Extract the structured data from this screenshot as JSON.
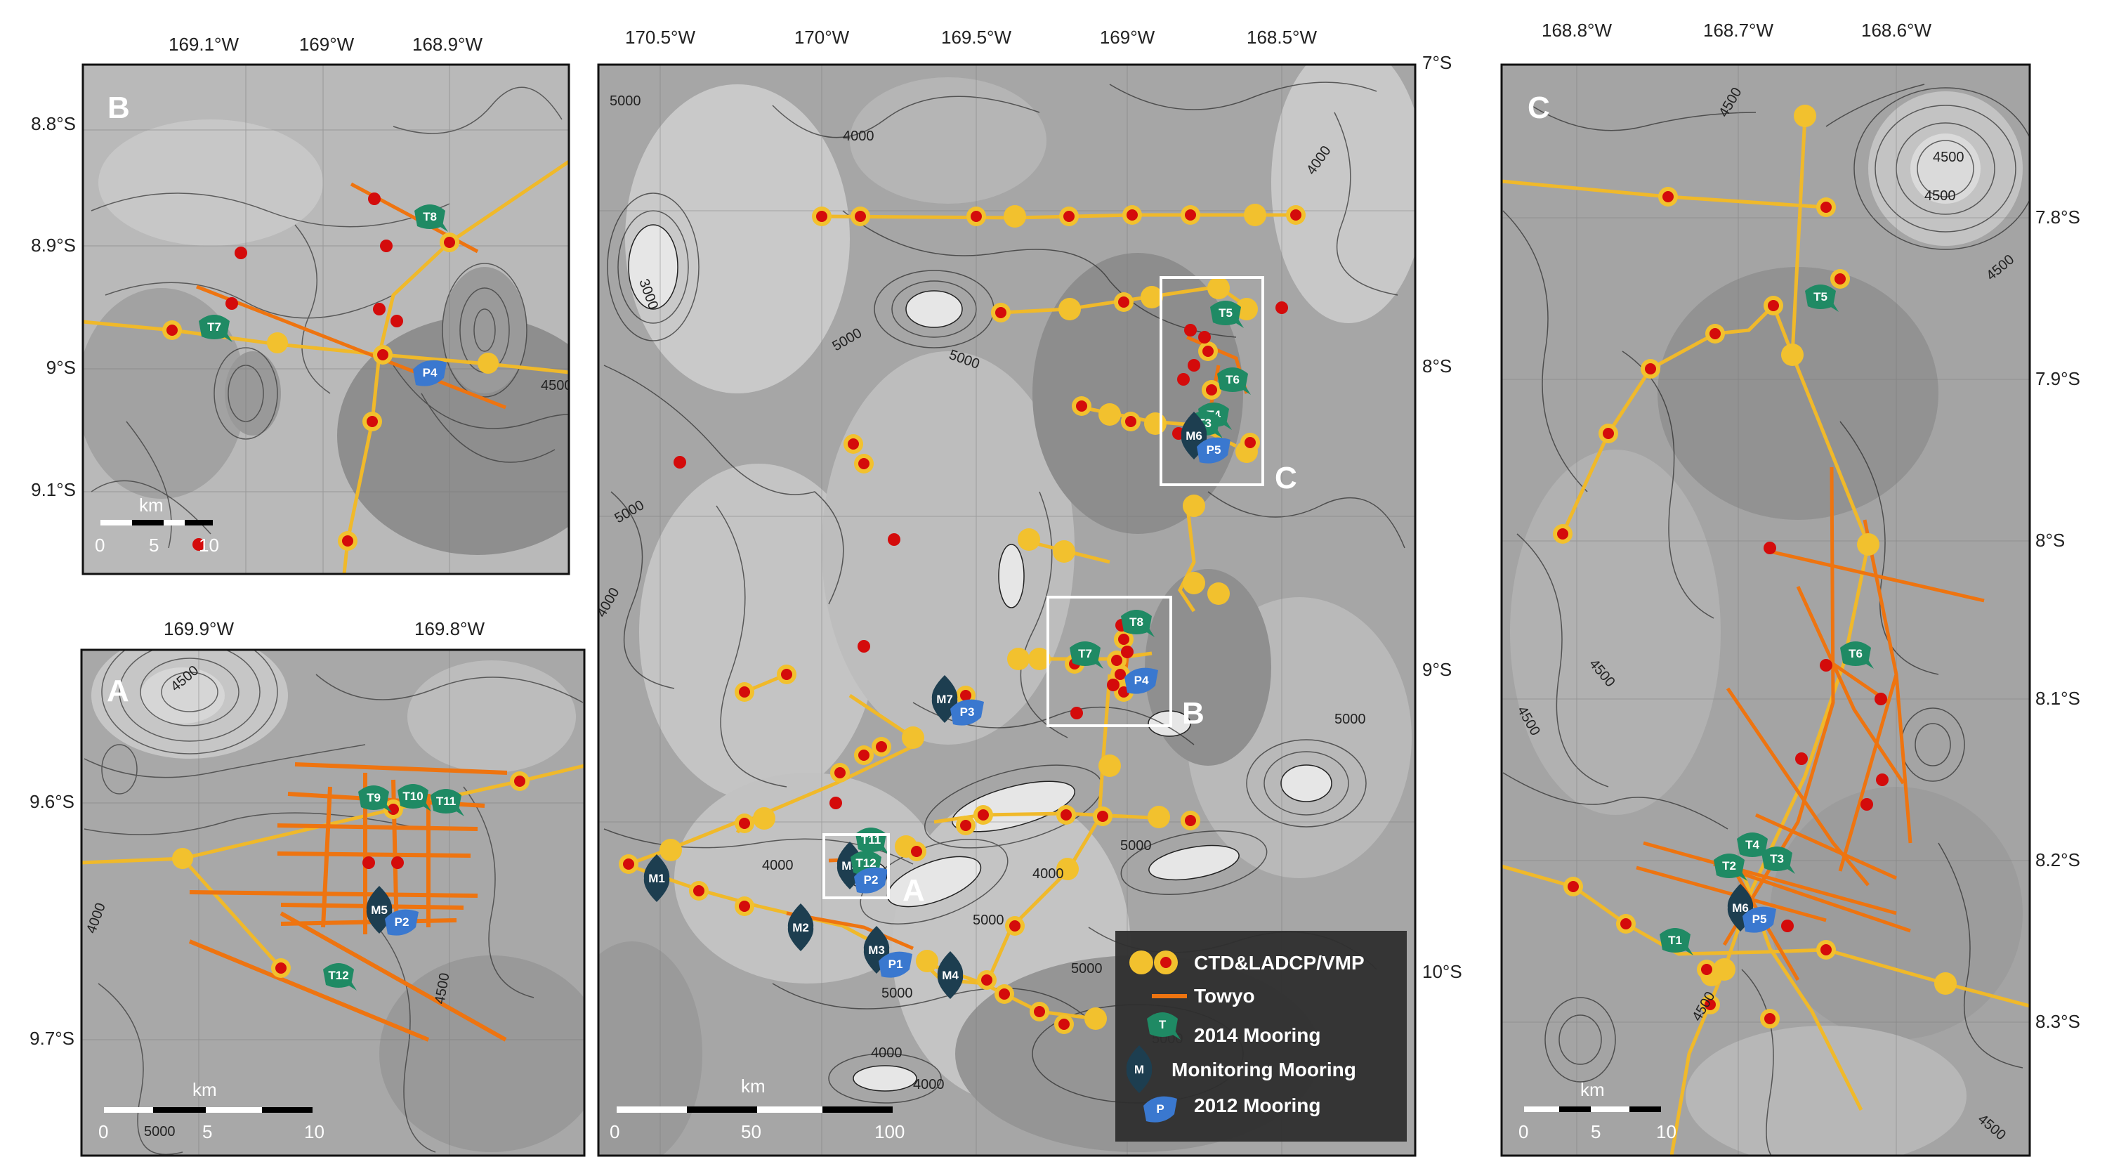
{
  "panels": {
    "B": {
      "letter": "B",
      "lon_ticks": [
        "169.1°W",
        "169°W",
        "168.9°W"
      ],
      "lat_ticks": [
        "8.8°S",
        "8.9°S",
        "9°S",
        "9.1°S"
      ],
      "scalebar": {
        "unit": "km",
        "ticks": [
          "0",
          "5",
          "10"
        ]
      },
      "contour_labels": [
        "4500"
      ],
      "moorings": [
        {
          "label": "T8",
          "type": "2014"
        },
        {
          "label": "T7",
          "type": "2014"
        },
        {
          "label": "P4",
          "type": "2012"
        }
      ]
    },
    "A": {
      "letter": "A",
      "lon_ticks": [
        "169.9°W",
        "169.8°W"
      ],
      "lat_ticks": [
        "9.6°S",
        "9.7°S"
      ],
      "scalebar": {
        "unit": "km",
        "ticks": [
          "0",
          "5",
          "10"
        ]
      },
      "contour_labels": [
        "4500",
        "4000",
        "5000",
        "4500"
      ],
      "moorings": [
        {
          "label": "T9",
          "type": "2014"
        },
        {
          "label": "T10",
          "type": "2014"
        },
        {
          "label": "T11",
          "type": "2014"
        },
        {
          "label": "M5",
          "type": "monitoring"
        },
        {
          "label": "P2",
          "type": "2012"
        },
        {
          "label": "T12",
          "type": "2014"
        }
      ]
    },
    "main": {
      "lon_ticks": [
        "170.5°W",
        "170°W",
        "169.5°W",
        "169°W",
        "168.5°W"
      ],
      "lat_ticks": [
        "7°S",
        "8°S",
        "9°S",
        "10°S"
      ],
      "scalebar": {
        "unit": "km",
        "ticks": [
          "0",
          "50",
          "100"
        ]
      },
      "box_labels": [
        "A",
        "B",
        "C"
      ],
      "contour_labels": [
        "5000",
        "4000",
        "3000",
        "5000",
        "4000",
        "5000",
        "5000",
        "4000",
        "5000",
        "4000",
        "5000",
        "4000",
        "4000",
        "5000",
        "5000",
        "5000",
        "5000",
        "4000"
      ],
      "moorings": [
        {
          "label": "T5",
          "type": "2014"
        },
        {
          "label": "T6",
          "type": "2014"
        },
        {
          "label": "T4",
          "type": "2014"
        },
        {
          "label": "T3",
          "type": "2014"
        },
        {
          "label": "M6",
          "type": "monitoring"
        },
        {
          "label": "P5",
          "type": "2012"
        },
        {
          "label": "T8",
          "type": "2014"
        },
        {
          "label": "T7",
          "type": "2014"
        },
        {
          "label": "P4",
          "type": "2012"
        },
        {
          "label": "M7",
          "type": "monitoring"
        },
        {
          "label": "P3",
          "type": "2012"
        },
        {
          "label": "T11",
          "type": "2014"
        },
        {
          "label": "M5",
          "type": "monitoring"
        },
        {
          "label": "T12",
          "type": "2014"
        },
        {
          "label": "P2",
          "type": "2012"
        },
        {
          "label": "M1",
          "type": "monitoring"
        },
        {
          "label": "M2",
          "type": "monitoring"
        },
        {
          "label": "M3",
          "type": "monitoring"
        },
        {
          "label": "P1",
          "type": "2012"
        },
        {
          "label": "M4",
          "type": "monitoring"
        }
      ],
      "legend": {
        "items": [
          {
            "label": "CTD&LADCP/VMP",
            "symbol": "ctd"
          },
          {
            "label": "Towyo",
            "symbol": "towyo"
          },
          {
            "label": "2014 Mooring",
            "symbol": "T"
          },
          {
            "label": "Monitoring Mooring",
            "symbol": "M"
          },
          {
            "label": "2012 Mooring",
            "symbol": "P"
          }
        ]
      }
    },
    "C": {
      "letter": "C",
      "lon_ticks": [
        "168.8°W",
        "168.7°W",
        "168.6°W"
      ],
      "lat_ticks": [
        "7.8°S",
        "7.9°S",
        "8°S",
        "8.1°S",
        "8.2°S",
        "8.3°S"
      ],
      "scalebar": {
        "unit": "km",
        "ticks": [
          "0",
          "5",
          "10"
        ]
      },
      "contour_labels": [
        "4500",
        "4500",
        "4500",
        "4500",
        "4500",
        "4500",
        "4500",
        "4500"
      ],
      "moorings": [
        {
          "label": "T5",
          "type": "2014"
        },
        {
          "label": "T6",
          "type": "2014"
        },
        {
          "label": "T4",
          "type": "2014"
        },
        {
          "label": "T2",
          "type": "2014"
        },
        {
          "label": "T3",
          "type": "2014"
        },
        {
          "label": "M6",
          "type": "monitoring"
        },
        {
          "label": "P5",
          "type": "2012"
        },
        {
          "label": "T1",
          "type": "2014"
        }
      ]
    }
  },
  "colors": {
    "ctd_fill": "#f2c12e",
    "ctd_dot": "#d40b0b",
    "towyo": "#ee7410",
    "ctd_line": "#f0b92a",
    "mooring_2014": "#1f8a64",
    "mooring_monitoring": "#1d3e50",
    "mooring_2012": "#3a78cf",
    "legend_bg": "#2e2e2e",
    "map_base": "#a6a6a6"
  }
}
